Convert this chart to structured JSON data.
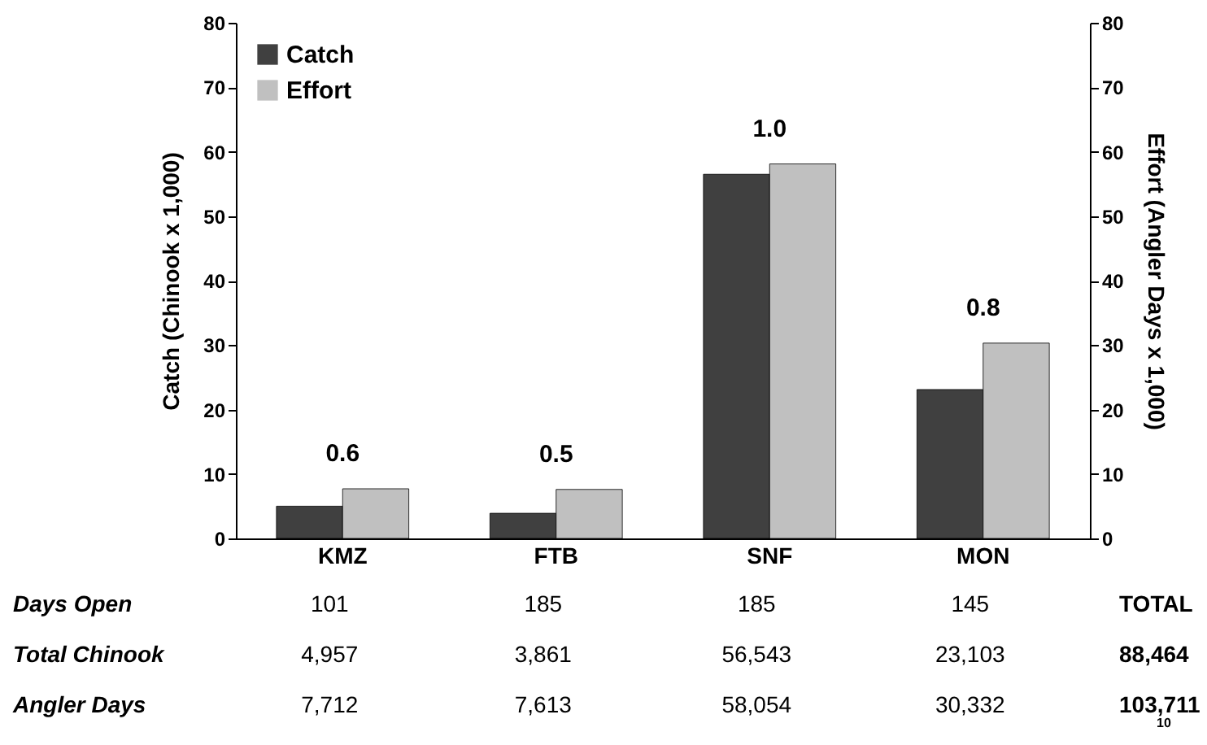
{
  "chart_data": {
    "type": "bar",
    "categories": [
      "KMZ",
      "FTB",
      "SNF",
      "MON"
    ],
    "ylabel": "Catch (Chinook x 1,000)",
    "y2label": "Effort (Angler Days x 1,000)",
    "ylim": [
      0,
      80
    ],
    "yticks": [
      0,
      10,
      20,
      30,
      40,
      50,
      60,
      70,
      80
    ],
    "y2lim": [
      0,
      80
    ],
    "y2ticks": [
      0,
      10,
      20,
      30,
      40,
      50,
      60,
      70,
      80
    ],
    "legend": "top left",
    "series": [
      {
        "name": "Catch",
        "color": "#404040",
        "values": [
          5.0,
          3.9,
          56.5,
          23.1
        ]
      },
      {
        "name": "Effort",
        "color": "#c0c0c0",
        "axis": "y2",
        "values": [
          7.7,
          7.6,
          58.1,
          30.3
        ]
      }
    ],
    "annotations": [
      "0.6",
      "0.5",
      "1.0",
      "0.8",
      "Days Open",
      "101",
      "185",
      "185",
      "145",
      "TOTAL",
      "Total Chinook",
      "4,957",
      "3,861",
      "56,543",
      "23,103",
      "88,464",
      "Angler Days",
      "7,712",
      "7,613",
      "58,054",
      "30,332",
      "103,711",
      "10"
    ]
  }
}
